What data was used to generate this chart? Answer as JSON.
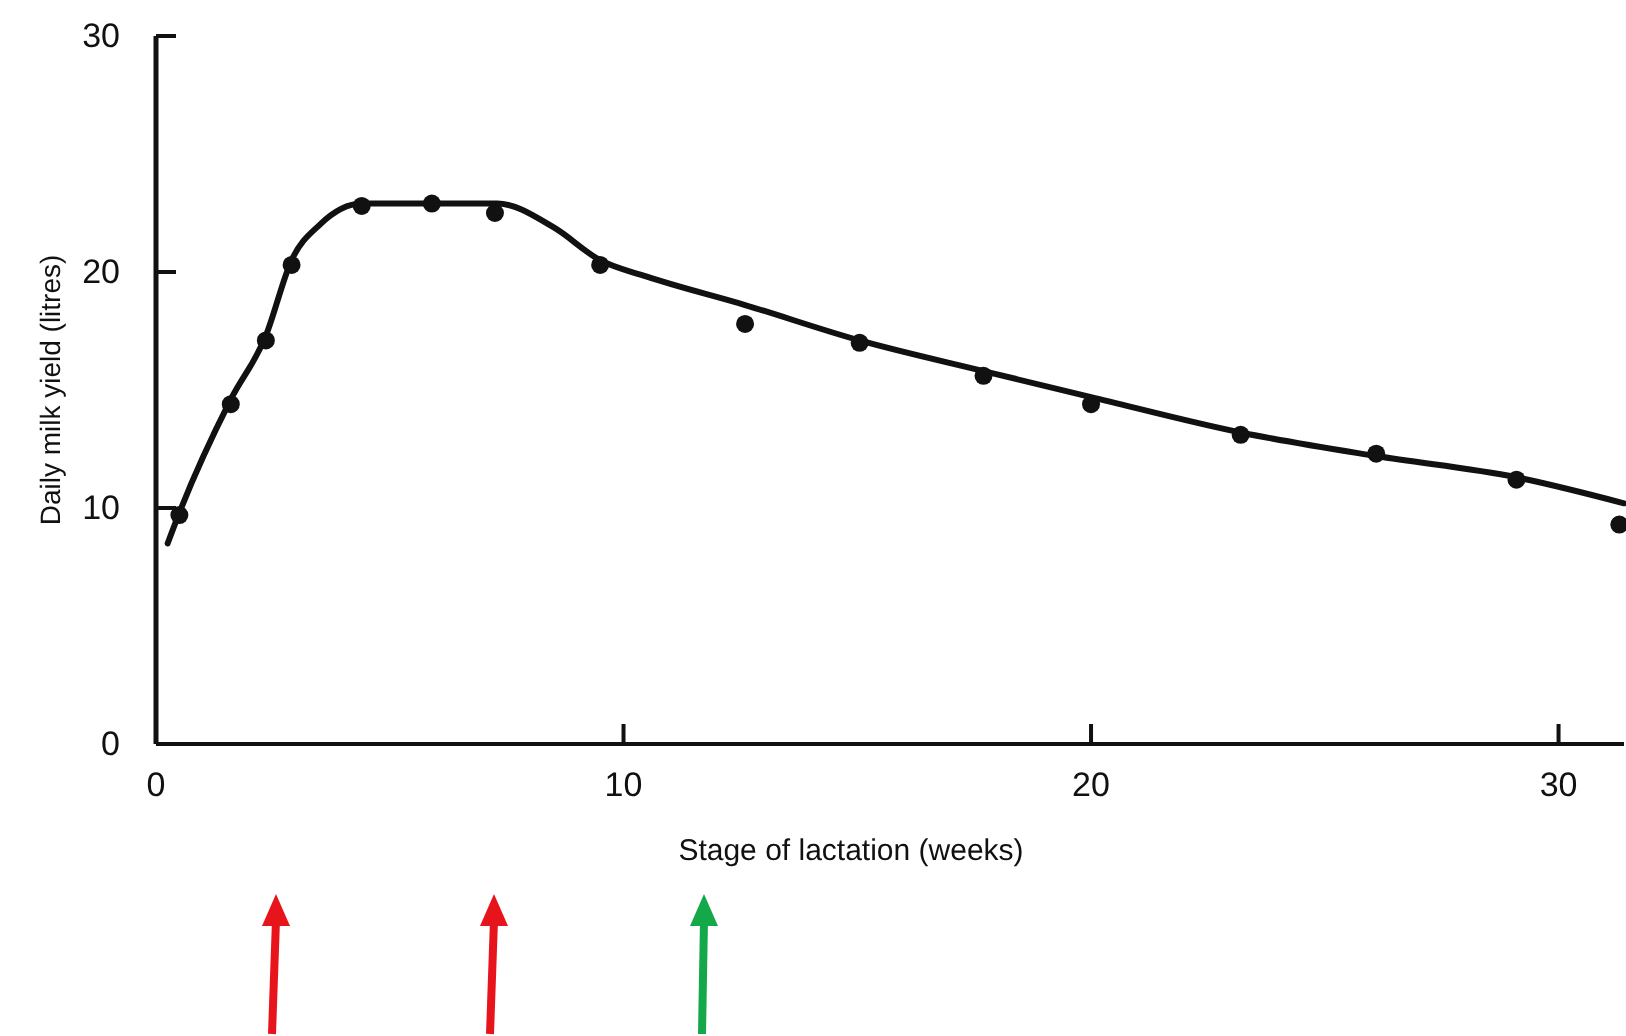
{
  "chart_data": {
    "type": "scatter",
    "xlabel": "Stage of lactation (weeks)",
    "ylabel": "Daily milk yield (litres)",
    "xlim": [
      0,
      31.4
    ],
    "ylim": [
      0,
      30
    ],
    "xticks": [
      0,
      10,
      20,
      30
    ],
    "yticks": [
      0,
      10,
      20,
      30
    ],
    "grid": false,
    "series": [
      {
        "color": "#111111",
        "marker": "circle",
        "x": [
          0.5,
          1.6,
          2.35,
          2.9,
          4.4,
          5.9,
          7.25,
          9.5,
          12.6,
          15.05,
          17.7,
          20,
          23.2,
          26.1,
          29.1,
          31.3
        ],
        "values": [
          9.7,
          14.4,
          17.1,
          20.3,
          22.8,
          22.9,
          22.5,
          20.3,
          17.8,
          17,
          15.6,
          14.4,
          13.1,
          12.3,
          11.2,
          9.3
        ]
      },
      {
        "type": "line",
        "color": "#111111",
        "marker": "none",
        "line_style": "solid",
        "x": [
          0.25,
          0.5,
          1.6,
          2.35,
          2.9,
          3.5,
          4.4,
          5.9,
          7.3,
          8.5,
          9.5,
          10.5,
          12.6,
          15.05,
          17.7,
          20,
          23.2,
          26.1,
          29.1,
          31.4
        ],
        "values": [
          8.5,
          9.8,
          14.6,
          17.3,
          20.5,
          22,
          22.9,
          22.9,
          22.9,
          21.9,
          20.5,
          19.8,
          18.6,
          17.1,
          15.8,
          14.7,
          13.2,
          12.2,
          11.3,
          10.2
        ]
      }
    ]
  }
}
